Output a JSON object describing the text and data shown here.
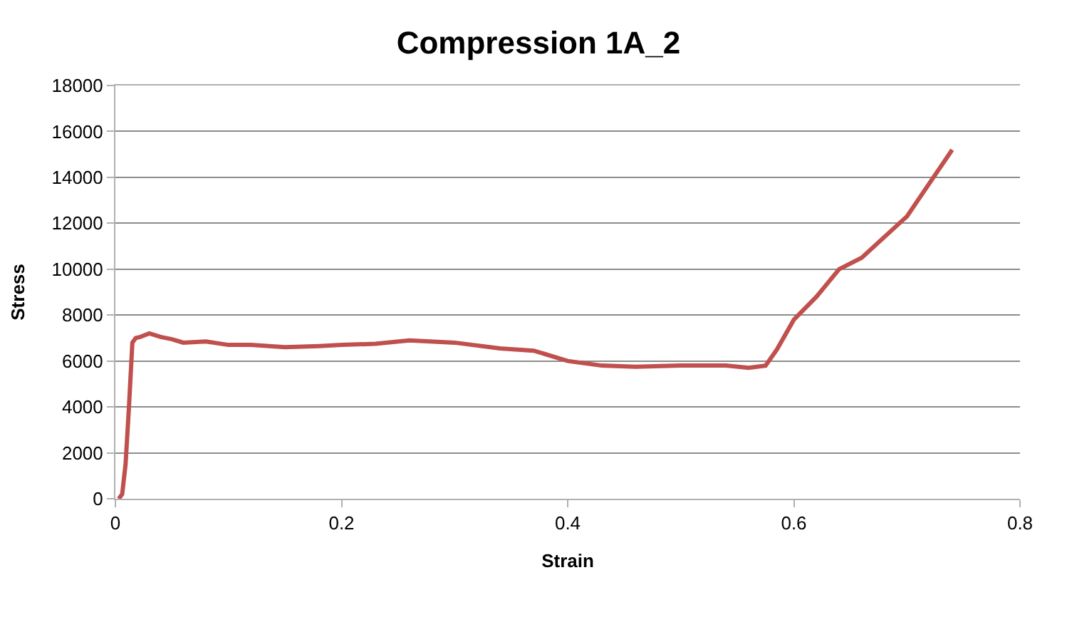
{
  "chart_data": {
    "type": "line",
    "title": "Compression 1A_2",
    "xlabel": "Strain",
    "ylabel": "Stress",
    "x": [
      0.003,
      0.006,
      0.009,
      0.012,
      0.015,
      0.018,
      0.022,
      0.03,
      0.04,
      0.05,
      0.06,
      0.08,
      0.1,
      0.12,
      0.15,
      0.18,
      0.2,
      0.23,
      0.26,
      0.3,
      0.34,
      0.37,
      0.4,
      0.43,
      0.46,
      0.5,
      0.54,
      0.56,
      0.575,
      0.585,
      0.6,
      0.62,
      0.64,
      0.66,
      0.7,
      0.74
    ],
    "series": [
      {
        "color": "#c0504d",
        "values": [
          0,
          200,
          1500,
          4000,
          6800,
          7000,
          7050,
          7200,
          7050,
          6950,
          6800,
          6850,
          6700,
          6700,
          6600,
          6650,
          6700,
          6750,
          6900,
          6800,
          6550,
          6450,
          6000,
          5800,
          5750,
          5800,
          5800,
          5700,
          5800,
          6500,
          7800,
          8800,
          10000,
          10500,
          12300,
          15200
        ]
      }
    ],
    "xlim": [
      0,
      0.8
    ],
    "xticks": [
      0,
      0.2,
      0.4,
      0.6,
      0.8
    ],
    "ylim": [
      0,
      18000
    ],
    "yticks": [
      0,
      2000,
      4000,
      6000,
      8000,
      10000,
      12000,
      14000,
      16000,
      18000
    ],
    "grid": "y",
    "marker": "none",
    "line_style": "solid"
  }
}
